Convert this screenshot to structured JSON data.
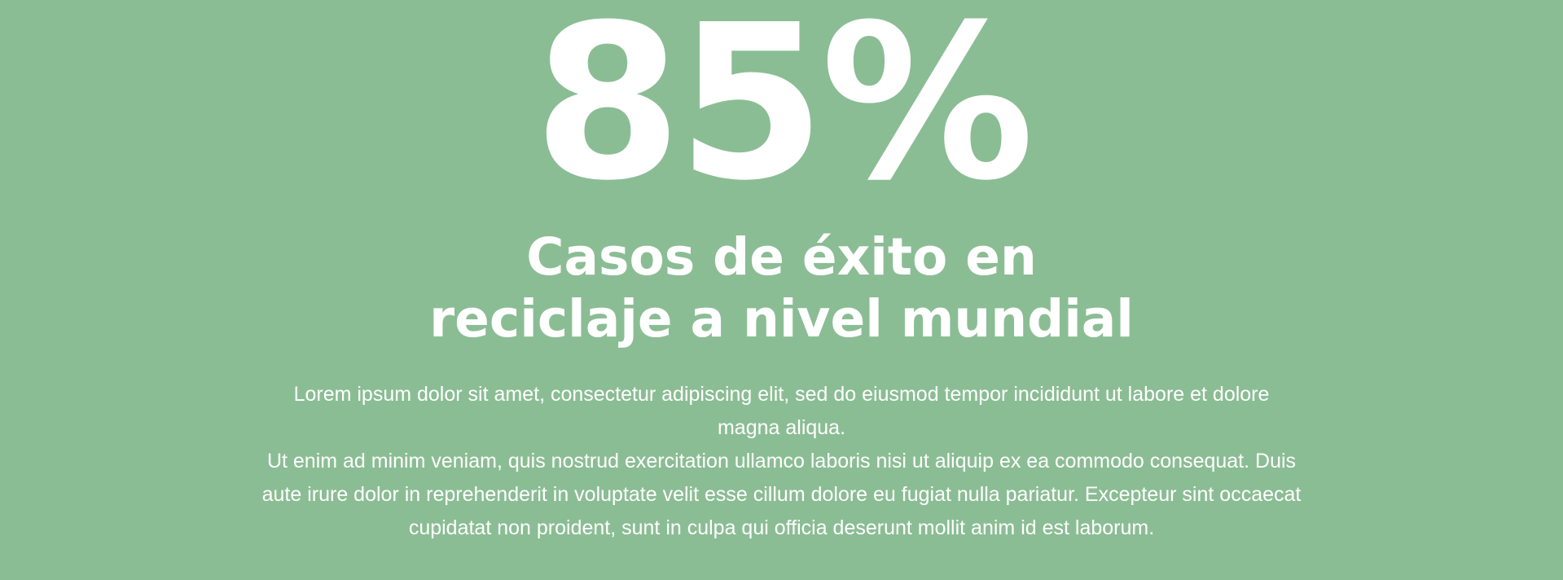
{
  "stat": {
    "value": "85%"
  },
  "headline": {
    "line1": "Casos de éxito en",
    "line2": "reciclaje a nivel mundial"
  },
  "body": {
    "paragraph1": "Lorem ipsum dolor sit amet, consectetur adipiscing elit, sed do eiusmod tempor incididunt ut labore et dolore magna aliqua.",
    "paragraph2": "Ut enim ad minim veniam, quis nostrud exercitation ullamco laboris nisi ut aliquip ex ea commodo consequat. Duis aute irure dolor in reprehenderit in voluptate velit esse cillum dolore eu fugiat nulla pariatur. Excepteur sint occaecat cupidatat non proident, sunt in culpa qui officia deserunt mollit anim id est laborum."
  },
  "colors": {
    "background": "#8bbd94",
    "text": "#ffffff"
  }
}
